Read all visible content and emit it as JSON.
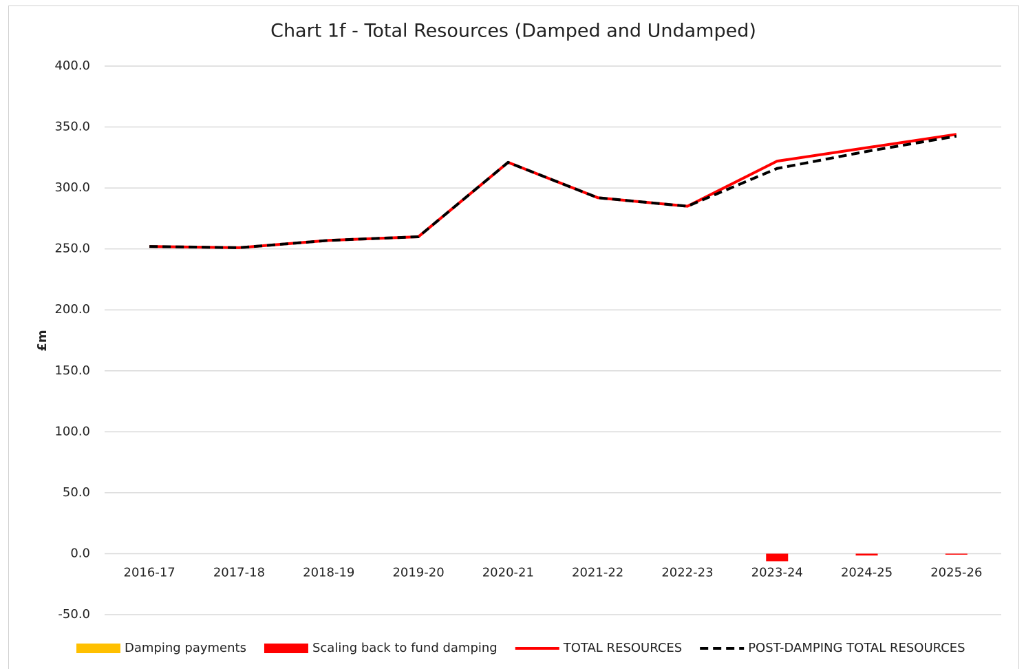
{
  "chart_data": {
    "type": "combo",
    "title": "Chart 1f - Total Resources (Damped and Undamped)",
    "y_label": "£m",
    "categories": [
      "2016-17",
      "2017-18",
      "2018-19",
      "2019-20",
      "2020-21",
      "2021-22",
      "2022-23",
      "2023-24",
      "2024-25",
      "2025-26"
    ],
    "series": [
      {
        "name": "Damping payments",
        "type": "bar",
        "color": "#ffc000",
        "values": [
          0,
          0,
          0,
          0,
          0,
          0,
          0,
          0,
          0,
          0
        ]
      },
      {
        "name": "Scaling back to fund damping",
        "type": "bar",
        "color": "#ff0000",
        "values": [
          0,
          0,
          0,
          0,
          0,
          0,
          0,
          -6.2,
          -1.5,
          -0.8
        ]
      },
      {
        "name": "TOTAL RESOURCES",
        "type": "line",
        "color": "#ff0000",
        "dashed": false,
        "values": [
          252,
          251,
          257,
          260,
          321,
          292,
          285,
          322,
          333,
          344
        ]
      },
      {
        "name": "POST-DAMPING TOTAL RESOURCES",
        "type": "line",
        "color": "#000000",
        "dashed": true,
        "values": [
          252,
          251,
          257,
          260,
          321,
          292,
          285,
          316,
          330,
          342.5
        ]
      }
    ],
    "ylim": [
      -50,
      400
    ],
    "yticks": [
      {
        "value": -50,
        "label": "-50.0"
      },
      {
        "value": 0,
        "label": "0.0"
      },
      {
        "value": 50,
        "label": "50.0"
      },
      {
        "value": 100,
        "label": "100.0"
      },
      {
        "value": 150,
        "label": "150.0"
      },
      {
        "value": 200,
        "label": "200.0"
      },
      {
        "value": 250,
        "label": "250.0"
      },
      {
        "value": 300,
        "label": "300.0"
      },
      {
        "value": 350,
        "label": "350.0"
      },
      {
        "value": 400,
        "label": "400.0"
      }
    ],
    "grid": true,
    "legend": "bottom"
  }
}
